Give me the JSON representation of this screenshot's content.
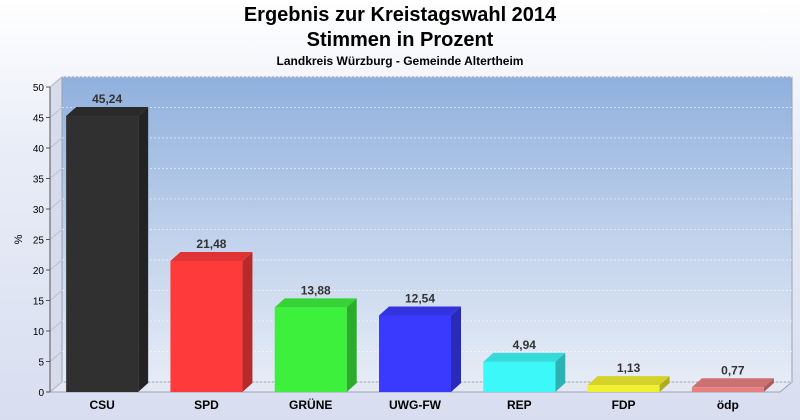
{
  "title_line1": "Ergebnis zur Kreistagswahl 2014",
  "title_line2": "Stimmen in Prozent",
  "subtitle": "Landkreis Würzburg - Gemeinde Altertheim",
  "chart_data": {
    "type": "bar",
    "title": "Ergebnis zur Kreistagswahl 2014 Stimmen in Prozent",
    "subtitle": "Landkreis Würzburg - Gemeinde Altertheim",
    "xlabel": "",
    "ylabel": "%",
    "ylim": [
      0,
      50
    ],
    "yticks": [
      0,
      5,
      10,
      15,
      20,
      25,
      30,
      35,
      40,
      45,
      50
    ],
    "grid": true,
    "categories": [
      "CSU",
      "SPD",
      "GRÜNE",
      "UWG-FW",
      "REP",
      "FDP",
      "ödp"
    ],
    "values": [
      45.24,
      21.48,
      13.88,
      12.54,
      4.94,
      1.13,
      0.77
    ],
    "value_labels": [
      "45,24",
      "21,48",
      "13,88",
      "12,54",
      "4,94",
      "1,13",
      "0,77"
    ],
    "colors": [
      "#303030",
      "#ff3a3a",
      "#3cf03c",
      "#3a3aff",
      "#3cf8f8",
      "#f0f030",
      "#e88080"
    ]
  }
}
